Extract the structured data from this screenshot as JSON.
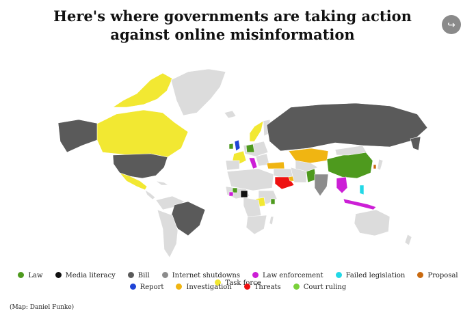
{
  "title": "Here's where governments are taking action against online misinformation",
  "share_icon": "share-icon",
  "credit": "(Map: Daniel Funke)",
  "colors": {
    "land": "#dcdcdc",
    "Law": "#4e9a1e",
    "Media literacy": "#111111",
    "Bill": "#5a5a5a",
    "Internet shutdowns": "#8c8c8c",
    "Law enforcement": "#cc1fd6",
    "Failed legislation": "#22d8e6",
    "Proposal": "#c96a10",
    "Task force": "#f2e832",
    "Report": "#1f44d6",
    "Investigation": "#f0b512",
    "Threats": "#ee1111",
    "Court ruling": "#7ad13a"
  },
  "legend": {
    "row1": [
      "Law",
      "Media literacy",
      "Bill",
      "Internet shutdowns",
      "Law enforcement",
      "Failed legislation",
      "Proposal",
      "Task force"
    ],
    "row2": [
      "Report",
      "Investigation",
      "Threats",
      "Court ruling"
    ]
  }
}
